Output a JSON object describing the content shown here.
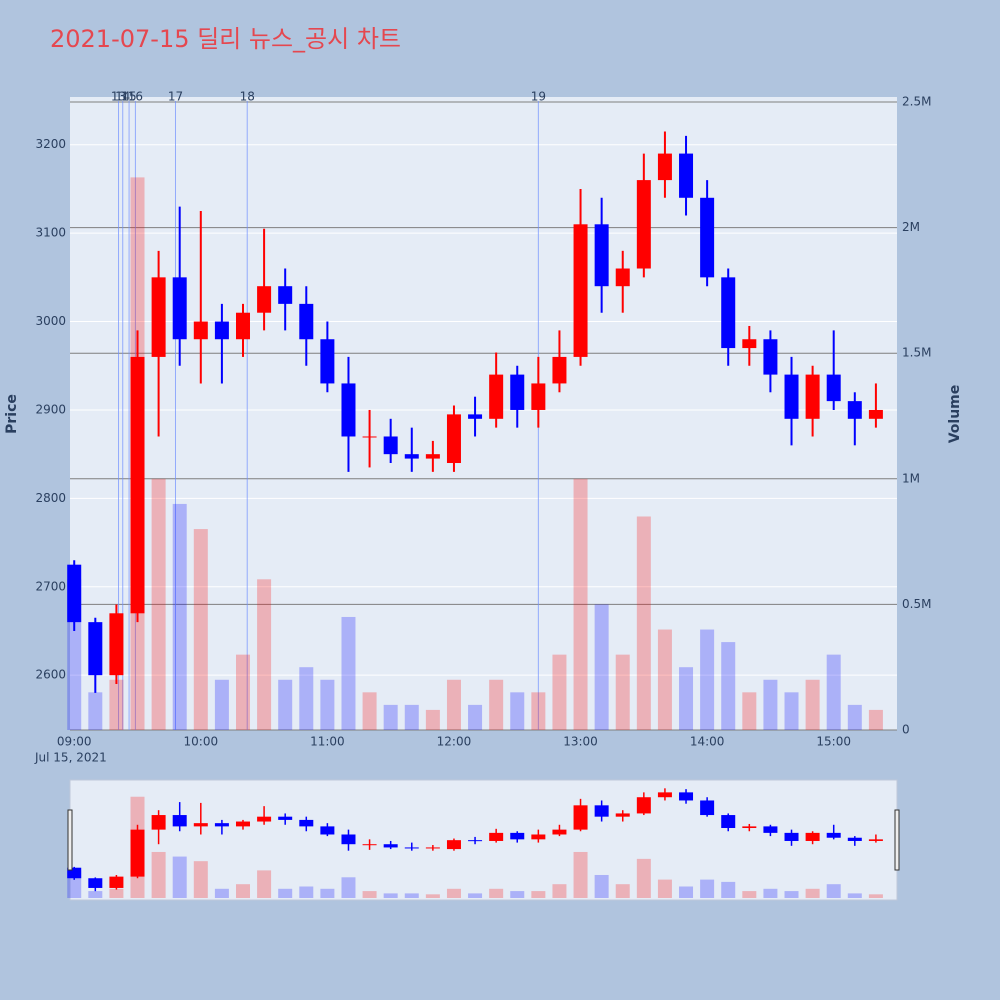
{
  "chart_data": {
    "type": "candlestick",
    "title": "2021-07-15 딜리 뉴스_공시 차트",
    "date_label": "Jul 15, 2021",
    "y_label": "Price",
    "y2_label": "Volume",
    "x": [
      "09:00",
      "09:10",
      "09:20",
      "09:30",
      "09:40",
      "09:50",
      "10:00",
      "10:10",
      "10:20",
      "10:30",
      "10:40",
      "10:50",
      "11:00",
      "11:10",
      "11:20",
      "11:30",
      "11:40",
      "11:50",
      "12:00",
      "12:10",
      "12:20",
      "12:30",
      "12:40",
      "12:50",
      "13:00",
      "13:10",
      "13:20",
      "13:30",
      "13:40",
      "13:50",
      "14:00",
      "14:10",
      "14:20",
      "14:30",
      "14:40",
      "14:50",
      "15:00",
      "15:10",
      "15:20"
    ],
    "open": [
      2725,
      2660,
      2600,
      2670,
      2960,
      3050,
      2980,
      3000,
      2980,
      3010,
      3040,
      3020,
      2980,
      2930,
      2870,
      2870,
      2850,
      2845,
      2840,
      2895,
      2890,
      2940,
      2900,
      2930,
      2960,
      3110,
      3040,
      3060,
      3160,
      3190,
      3140,
      3050,
      2970,
      2980,
      2940,
      2890,
      2940,
      2910,
      2890
    ],
    "high": [
      2730,
      2665,
      2680,
      2990,
      3080,
      3130,
      3125,
      3020,
      3020,
      3105,
      3060,
      3040,
      3000,
      2960,
      2900,
      2890,
      2880,
      2865,
      2905,
      2915,
      2965,
      2950,
      2960,
      2990,
      3150,
      3140,
      3080,
      3190,
      3215,
      3210,
      3160,
      3060,
      2995,
      2990,
      2960,
      2950,
      2990,
      2920,
      2930
    ],
    "low": [
      2650,
      2580,
      2590,
      2660,
      2870,
      2950,
      2930,
      2930,
      2960,
      2990,
      2990,
      2950,
      2920,
      2830,
      2835,
      2840,
      2830,
      2830,
      2830,
      2870,
      2880,
      2880,
      2880,
      2920,
      2950,
      3010,
      3010,
      3050,
      3140,
      3120,
      3040,
      2950,
      2950,
      2920,
      2860,
      2870,
      2900,
      2860,
      2880
    ],
    "close": [
      2660,
      2600,
      2670,
      2960,
      3050,
      2980,
      3000,
      2980,
      3010,
      3040,
      3020,
      2980,
      2930,
      2870,
      2870,
      2850,
      2845,
      2850,
      2895,
      2890,
      2940,
      2900,
      2930,
      2960,
      3110,
      3040,
      3060,
      3160,
      3190,
      3140,
      3050,
      2970,
      2980,
      2940,
      2890,
      2940,
      2910,
      2890,
      2900
    ],
    "increasing_color": "#ff0000",
    "decreasing_color": "#0000ff",
    "volume": {
      "name": "Volume",
      "axis": "y2",
      "values": [
        600000,
        150000,
        200000,
        2200000,
        1000000,
        900000,
        800000,
        200000,
        300000,
        600000,
        200000,
        250000,
        200000,
        450000,
        150000,
        100000,
        100000,
        80000,
        200000,
        100000,
        200000,
        150000,
        150000,
        300000,
        1000000,
        500000,
        300000,
        850000,
        400000,
        250000,
        400000,
        350000,
        150000,
        200000,
        150000,
        200000,
        300000,
        100000,
        80000
      ]
    },
    "xlim": [
      "08:58",
      "15:30"
    ],
    "xticks": [
      "09:00",
      "10:00",
      "11:00",
      "12:00",
      "13:00",
      "14:00",
      "15:00"
    ],
    "ylim": [
      2538,
      3254
    ],
    "yticks": [
      2600,
      2700,
      2800,
      2900,
      3000,
      3100,
      3200
    ],
    "y2lim": [
      0,
      2520000
    ],
    "y2ticks": [
      0,
      {
        "value": 500000,
        "label": "0.5M"
      },
      {
        "value": 1000000,
        "label": "1M"
      },
      {
        "value": 1500000,
        "label": "1.5M"
      },
      {
        "value": 2000000,
        "label": "2M"
      },
      {
        "value": 2500000,
        "label": "2.5M"
      }
    ],
    "events": [
      {
        "label": "13",
        "time": "09:21"
      },
      {
        "label": "14",
        "time": "09:23"
      },
      {
        "label": "15",
        "time": "09:26"
      },
      {
        "label": "16",
        "time": "09:29"
      },
      {
        "label": "17",
        "time": "09:48"
      },
      {
        "label": "18",
        "time": "10:22"
      },
      {
        "label": "19",
        "time": "12:40"
      }
    ],
    "grid": true,
    "range_slider": true
  }
}
